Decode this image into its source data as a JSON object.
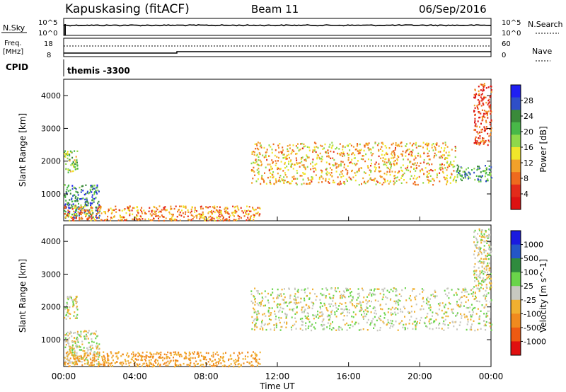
{
  "header": {
    "station": "Kapuskasing (fitACF)",
    "beam": "Beam 11",
    "date": "06/Sep/2016"
  },
  "top_panels": {
    "nsky_label": "N.Sky",
    "nsky_ticks": [
      "10^5",
      "10^0"
    ],
    "nsearch_label": "N.Search",
    "nsearch_ticks": [
      "10^5",
      "10^0"
    ],
    "freq_label_1": "Freq.",
    "freq_label_2": "[MHz]",
    "freq_ticks": [
      "18",
      "8"
    ],
    "nave_label": "Nave",
    "nave_ticks": [
      "60",
      "0"
    ],
    "cpid_label": "CPID",
    "cpid_text": "themis -3300"
  },
  "chart_data": [
    {
      "type": "heatmap",
      "title": "",
      "parameter": "Power",
      "units": "dB",
      "ylabel": "Slant Range [km]",
      "ylim": [
        180,
        4500
      ],
      "y_ticks": [
        1000,
        2000,
        3000,
        4000
      ],
      "colorbar": {
        "label": "Power [dB]",
        "ticks": [
          "4",
          "8",
          "12",
          "16",
          "20",
          "24",
          "28"
        ],
        "colors": [
          "#1f1ff2",
          "#2f4fc8",
          "#3a8a3a",
          "#48b848",
          "#8fd84a",
          "#f0e62a",
          "#f2a12a",
          "#ee6a1e",
          "#e32b1a",
          "#dd1212"
        ]
      },
      "features": [
        {
          "time": "00:00-00:45",
          "range_km": [
            1650,
            2350
          ],
          "power_db": 18
        },
        {
          "time": "00:00-02:00",
          "range_km": [
            250,
            1300
          ],
          "power_db": 24
        },
        {
          "time": "00:00-11:00",
          "range_km": [
            200,
            650
          ],
          "power_db": 10
        },
        {
          "time": "10:30-22:00",
          "range_km": [
            1300,
            2600
          ],
          "power_db": 12
        },
        {
          "time": "22:00-24:00",
          "range_km": [
            1400,
            1900
          ],
          "power_db": 22
        },
        {
          "time": "23:00-24:00",
          "range_km": [
            2500,
            4400
          ],
          "power_db": 6
        }
      ]
    },
    {
      "type": "heatmap",
      "title": "",
      "parameter": "Velocity",
      "units": "m s^-1",
      "ylabel": "Slant Range [km]",
      "xlabel": "Time UT",
      "ylim": [
        180,
        4500
      ],
      "y_ticks": [
        1000,
        2000,
        3000,
        4000
      ],
      "x_ticks": [
        "00:00",
        "04:00",
        "08:00",
        "12:00",
        "16:00",
        "20:00",
        "00:00"
      ],
      "colorbar": {
        "label": "Velocity [m s^-1]",
        "ticks": [
          "1000",
          "500",
          "100",
          "25",
          "-25",
          "-100",
          "-500",
          "-1000"
        ],
        "colors": [
          "#1a1ae0",
          "#2456c8",
          "#2f8b3e",
          "#6ad44a",
          "#c8c8c0",
          "#f0b030",
          "#f08a1e",
          "#ee5a12",
          "#e01010"
        ]
      },
      "features": [
        {
          "time": "00:00-00:45",
          "range_km": [
            1650,
            2350
          ],
          "velocity": 0
        },
        {
          "time": "00:00-02:00",
          "range_km": [
            250,
            1300
          ],
          "velocity": 0
        },
        {
          "time": "00:00-11:00",
          "range_km": [
            200,
            650
          ],
          "velocity": -100
        },
        {
          "time": "10:30-24:00",
          "range_km": [
            1300,
            2600
          ],
          "velocity": 0
        },
        {
          "time": "23:00-24:00",
          "range_km": [
            2500,
            4400
          ],
          "velocity": 0
        }
      ]
    }
  ]
}
